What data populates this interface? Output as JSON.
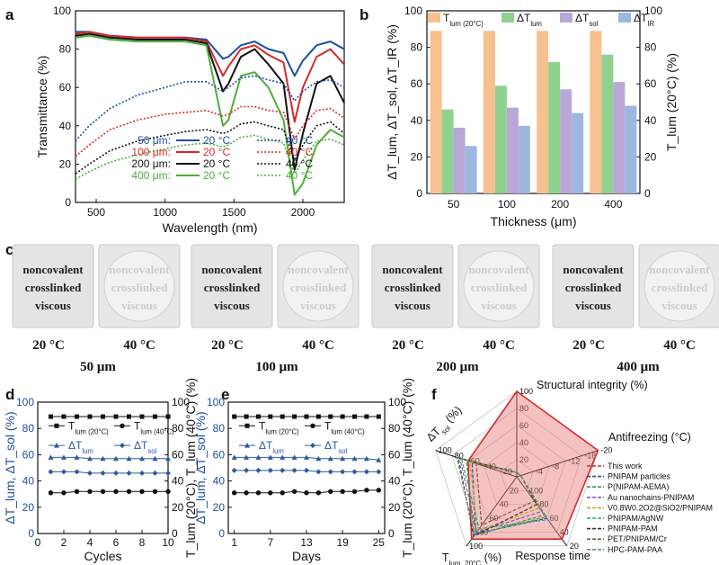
{
  "panel_labels": {
    "a": "a",
    "b": "b",
    "c": "c",
    "d": "d",
    "e": "e",
    "f": "f"
  },
  "colors": {
    "black": "#111111",
    "red": "#d42a2a",
    "blue": "#1f4fa3",
    "green": "#4caf3a",
    "orange": "#f7c08f",
    "lgreen": "#8fd18f",
    "purple": "#b9a8d6",
    "lblue": "#9db7e0",
    "bluepts": "#2c5aa0"
  },
  "chart_data": [
    {
      "panel": "a",
      "type": "line",
      "xlabel": "Wavelength (nm)",
      "ylabel": "Transmittance (%)",
      "xlim": [
        350,
        2300
      ],
      "ylim": [
        0,
        100
      ],
      "xticks": [
        500,
        1000,
        1500,
        2000
      ],
      "yticks": [
        0,
        20,
        40,
        60,
        80,
        100
      ],
      "legend": {
        "rows": [
          {
            "thickness": "50 μm:",
            "c20": "20 °C",
            "c40": "40 °C",
            "color": "#1f4fa3"
          },
          {
            "thickness": "100 μm:",
            "c20": "20 °C",
            "c40": "40 °C",
            "color": "#d42a2a"
          },
          {
            "thickness": "200 μm:",
            "c20": "20 °C",
            "c40": "40 °C",
            "color": "#111111"
          },
          {
            "thickness": "400 μm:",
            "c20": "20 °C",
            "c40": "40 °C",
            "color": "#4caf3a"
          }
        ]
      },
      "series": [
        {
          "name": "50 μm 20 °C",
          "color": "#1f4fa3",
          "dash": false,
          "x": [
            350,
            450,
            600,
            800,
            1000,
            1150,
            1300,
            1420,
            1460,
            1550,
            1650,
            1750,
            1860,
            1940,
            2000,
            2100,
            2200,
            2300
          ],
          "y": [
            89,
            89,
            87,
            86,
            86,
            86,
            85,
            75,
            76,
            82,
            84,
            80,
            78,
            66,
            74,
            82,
            84,
            80
          ]
        },
        {
          "name": "100 μm 20 °C",
          "color": "#d42a2a",
          "dash": false,
          "x": [
            350,
            450,
            600,
            800,
            1000,
            1150,
            1300,
            1420,
            1460,
            1550,
            1650,
            1750,
            1860,
            1940,
            2000,
            2100,
            2200,
            2300
          ],
          "y": [
            88,
            89,
            87,
            86,
            86,
            86,
            84,
            66,
            71,
            80,
            82,
            77,
            73,
            42,
            60,
            76,
            80,
            72
          ]
        },
        {
          "name": "200 μm 20 °C",
          "color": "#111111",
          "dash": false,
          "x": [
            350,
            450,
            600,
            800,
            1000,
            1150,
            1300,
            1420,
            1460,
            1550,
            1650,
            1750,
            1860,
            1940,
            2000,
            2100,
            2200,
            2300
          ],
          "y": [
            87,
            88,
            86,
            85,
            85,
            85,
            83,
            58,
            62,
            76,
            80,
            72,
            62,
            17,
            36,
            62,
            66,
            52
          ]
        },
        {
          "name": "400 μm 20 °C",
          "color": "#4caf3a",
          "dash": false,
          "x": [
            350,
            450,
            600,
            800,
            1000,
            1150,
            1300,
            1420,
            1460,
            1550,
            1650,
            1750,
            1860,
            1940,
            2000,
            2100,
            2200,
            2300
          ],
          "y": [
            86,
            87,
            85,
            84,
            84,
            84,
            82,
            40,
            43,
            66,
            68,
            60,
            43,
            4,
            10,
            30,
            38,
            34
          ]
        },
        {
          "name": "50 μm 40 °C",
          "color": "#1f4fa3",
          "dash": true,
          "x": [
            350,
            450,
            600,
            800,
            1000,
            1150,
            1300,
            1420,
            1460,
            1550,
            1650,
            1750,
            1860,
            1940,
            2000,
            2100,
            2200,
            2300
          ],
          "y": [
            32,
            40,
            49,
            56,
            60,
            63,
            63,
            58,
            60,
            65,
            66,
            64,
            62,
            53,
            58,
            63,
            64,
            60
          ]
        },
        {
          "name": "100 μm 40 °C",
          "color": "#d42a2a",
          "dash": true,
          "x": [
            350,
            450,
            600,
            800,
            1000,
            1150,
            1300,
            1420,
            1460,
            1550,
            1650,
            1750,
            1860,
            1940,
            2000,
            2100,
            2200,
            2300
          ],
          "y": [
            24,
            30,
            38,
            43,
            46,
            47,
            48,
            45,
            46,
            50,
            50,
            48,
            47,
            33,
            40,
            48,
            49,
            44
          ]
        },
        {
          "name": "200 μm 40 °C",
          "color": "#111111",
          "dash": true,
          "x": [
            350,
            450,
            600,
            800,
            1000,
            1150,
            1300,
            1420,
            1460,
            1550,
            1650,
            1750,
            1860,
            1940,
            2000,
            2100,
            2200,
            2300
          ],
          "y": [
            15,
            20,
            27,
            32,
            35,
            37,
            38,
            36,
            37,
            41,
            42,
            40,
            38,
            22,
            30,
            40,
            42,
            36
          ]
        },
        {
          "name": "400 μm 40 °C",
          "color": "#4caf3a",
          "dash": true,
          "x": [
            350,
            450,
            600,
            800,
            1000,
            1150,
            1300,
            1420,
            1460,
            1550,
            1650,
            1750,
            1860,
            1940,
            2000,
            2100,
            2200,
            2300
          ],
          "y": [
            12,
            16,
            21,
            25,
            28,
            30,
            31,
            29,
            30,
            34,
            35,
            33,
            31,
            15,
            22,
            32,
            33,
            30
          ]
        }
      ]
    },
    {
      "panel": "b",
      "type": "bar",
      "xlabel": "Thickness (μm)",
      "ylabel_left": "ΔT_lum, ΔT_sol, ΔT_IR (%)",
      "ylabel_right": "T_lum (20°C) (%)",
      "ylim": [
        0,
        100
      ],
      "yticks": [
        0,
        20,
        40,
        60,
        80,
        100
      ],
      "categories": [
        "50",
        "100",
        "200",
        "400"
      ],
      "legend": [
        "T_lum (20°C)",
        "ΔT_lum",
        "ΔT_sol",
        "ΔT_IR"
      ],
      "series": [
        {
          "name": "T_lum (20°C)",
          "color": "#f7c08f",
          "values": [
            89,
            89,
            89,
            89
          ]
        },
        {
          "name": "ΔT_lum",
          "color": "#8fd18f",
          "values": [
            46,
            59,
            72,
            76
          ]
        },
        {
          "name": "ΔT_sol",
          "color": "#b9a8d6",
          "values": [
            36,
            47,
            57,
            61
          ]
        },
        {
          "name": "ΔT_IR",
          "color": "#9db7e0",
          "values": [
            26,
            37,
            44,
            48
          ]
        }
      ]
    },
    {
      "panel": "d",
      "type": "scatter",
      "xlabel": "Cycles",
      "ylabel_left": "ΔT_lum, ΔT_sol (%)",
      "ylabel_right": "T_lum (20°C), T_lum (40°C) (%)",
      "xlim": [
        0,
        10
      ],
      "ylim": [
        0,
        100
      ],
      "xticks": [
        0,
        2,
        4,
        6,
        8,
        10
      ],
      "yticks": [
        0,
        20,
        40,
        60,
        80,
        100
      ],
      "x": [
        1,
        2,
        3,
        4,
        5,
        6,
        7,
        8,
        9,
        10
      ],
      "legend": [
        "T_lum (20°C)",
        "T_lum (40°C)",
        "ΔT_lum",
        "ΔT_sol"
      ],
      "series": [
        {
          "name": "T_lum (20°C)",
          "color": "#111111",
          "marker": "square",
          "values": [
            89,
            89,
            89,
            89,
            89,
            89,
            89,
            89,
            89,
            89
          ]
        },
        {
          "name": "T_lum (40°C)",
          "color": "#111111",
          "marker": "circle",
          "values": [
            31,
            31,
            32,
            32,
            32,
            32,
            32,
            32,
            32,
            32
          ]
        },
        {
          "name": "ΔT_lum",
          "color": "#2c5aa0",
          "marker": "triangle",
          "values": [
            58,
            58,
            58,
            57,
            57,
            57,
            57,
            57,
            57,
            57
          ]
        },
        {
          "name": "ΔT_sol",
          "color": "#2c5aa0",
          "marker": "diamond",
          "values": [
            47,
            47,
            47,
            46,
            46,
            46,
            46,
            46,
            46,
            46
          ]
        }
      ]
    },
    {
      "panel": "e",
      "type": "scatter",
      "xlabel": "Days",
      "ylabel_left": "ΔT_lum, ΔT_sol (%)",
      "ylabel_right": "T_lum (20°C), T_lum (40°C) (%)",
      "xlim": [
        0,
        26
      ],
      "ylim": [
        0,
        100
      ],
      "xticks": [
        1,
        7,
        13,
        19,
        25
      ],
      "yticks": [
        0,
        20,
        40,
        60,
        80,
        100
      ],
      "x": [
        1,
        3,
        5,
        7,
        9,
        11,
        13,
        15,
        17,
        19,
        21,
        23,
        25
      ],
      "legend": [
        "T_lum (20°C)",
        "T_lum (40°C)",
        "ΔT_lum",
        "ΔT_sol"
      ],
      "series": [
        {
          "name": "T_lum (20°C)",
          "color": "#111111",
          "marker": "square",
          "values": [
            89,
            89,
            89,
            89,
            89,
            89,
            89,
            89,
            89,
            89,
            89,
            89,
            89
          ]
        },
        {
          "name": "T_lum (40°C)",
          "color": "#111111",
          "marker": "circle",
          "values": [
            31,
            31,
            31,
            31,
            31,
            32,
            31,
            31,
            32,
            32,
            32,
            33,
            33
          ]
        },
        {
          "name": "ΔT_lum",
          "color": "#2c5aa0",
          "marker": "triangle",
          "values": [
            58,
            58,
            58,
            58,
            58,
            58,
            58,
            57,
            57,
            57,
            57,
            57,
            56
          ]
        },
        {
          "name": "ΔT_sol",
          "color": "#2c5aa0",
          "marker": "diamond",
          "values": [
            48,
            48,
            48,
            48,
            48,
            48,
            48,
            47,
            47,
            47,
            47,
            47,
            47
          ]
        }
      ]
    },
    {
      "panel": "f",
      "type": "radar",
      "axes": [
        {
          "name": "Structural integrity (%)",
          "ticks": [
            "0",
            "20",
            "40",
            "60",
            "80",
            "100"
          ]
        },
        {
          "name": "Antifreezing (°C)",
          "ticks": [
            "0",
            "-4",
            "-8",
            "-12",
            "-16",
            "-20"
          ]
        },
        {
          "name": "Response time",
          "ticks": [
            "N.A.",
            "100",
            "80",
            "60",
            "40",
            "20"
          ]
        },
        {
          "name": "T_lum, 20°C (%)",
          "ticks": [
            "0",
            "20",
            "40",
            "60",
            "80",
            "100"
          ]
        },
        {
          "name": "ΔT_sol (%)",
          "ticks": [
            "0",
            "20",
            "40",
            "60",
            "80",
            "100"
          ]
        }
      ],
      "series": [
        {
          "name": "This work",
          "color": "#d42a2a",
          "fill": true,
          "values": [
            1.0,
            1.0,
            0.9,
            0.9,
            0.6
          ]
        },
        {
          "name": "PNIPAM particles",
          "color": "#1f4fa3",
          "values": [
            0.05,
            0.05,
            0.6,
            0.82,
            0.55
          ]
        },
        {
          "name": "P(NIPAM-AEMA)",
          "color": "#3a9a3a",
          "values": [
            0.05,
            0.05,
            0.55,
            0.85,
            0.62
          ]
        },
        {
          "name": "Au nanochains-PNIPAM",
          "color": "#8a5ab8",
          "values": [
            0.05,
            0.05,
            0.5,
            0.8,
            0.7
          ]
        },
        {
          "name": "V0.8W0.2O2@SiO2/PNIPAM",
          "color": "#c9a227",
          "values": [
            0.05,
            0.05,
            0.45,
            0.78,
            0.58
          ]
        },
        {
          "name": "PNIPAM/AgNW",
          "color": "#2fa18a",
          "values": [
            0.05,
            0.05,
            0.62,
            0.75,
            0.68
          ]
        },
        {
          "name": "PNIPAM-PAM",
          "color": "#333333",
          "values": [
            0.05,
            0.05,
            0.4,
            0.86,
            0.72
          ]
        },
        {
          "name": "PET/PNIPAM/Cr",
          "color": "#7b5a3a",
          "values": [
            0.05,
            0.05,
            0.35,
            0.7,
            0.5
          ]
        },
        {
          "name": "HPC-PAM-PAA",
          "color": "#5a9a5a",
          "values": [
            0.05,
            0.05,
            0.58,
            0.84,
            0.74
          ]
        }
      ]
    }
  ],
  "photos": {
    "text_lines": [
      "noncovalent",
      "crosslinked",
      "viscous"
    ],
    "temps": [
      "20 °C",
      "40 °C"
    ],
    "groups": [
      "50 μm",
      "100 μm",
      "200 μm",
      "400 μm"
    ]
  }
}
